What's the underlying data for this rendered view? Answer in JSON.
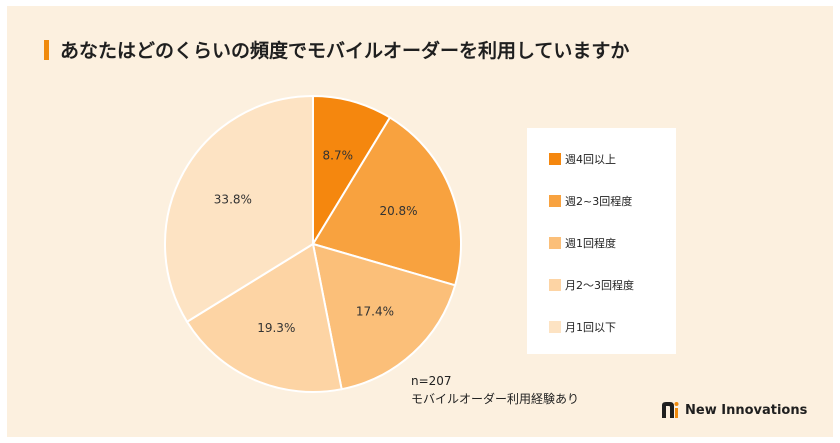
{
  "header": {
    "title": "あなたはどのくらいの頻度でモバイルオーダーを利用していますか"
  },
  "colors": {
    "background": "#fcf0df",
    "title_accent": "#f08a0c",
    "slice_divider": "#ffffff",
    "legend_background": "#ffffff"
  },
  "chart_data": {
    "type": "pie",
    "title": "あなたはどのくらいの頻度でモバイルオーダーを利用していますか",
    "unit": "%",
    "legend_position": "right",
    "slices": [
      {
        "label": "週4回以上",
        "value": 8.7,
        "display": "8.7%",
        "color": "#f5870e"
      },
      {
        "label": "週2~3回程度",
        "value": 20.8,
        "display": "20.8%",
        "color": "#f8a23f"
      },
      {
        "label": "週1回程度",
        "value": 17.4,
        "display": "17.4%",
        "color": "#fbbf79"
      },
      {
        "label": "月2〜3回程度",
        "value": 19.3,
        "display": "19.3%",
        "color": "#fdd4a4"
      },
      {
        "label": "月1回以下",
        "value": 33.8,
        "display": "33.8%",
        "color": "#fde3c3"
      }
    ]
  },
  "note": {
    "sample": "n=207",
    "condition": "モバイルオーダー利用経験あり"
  },
  "brand": {
    "name": "New Innovations",
    "logo_icon": "new-innovations-logo-icon"
  }
}
